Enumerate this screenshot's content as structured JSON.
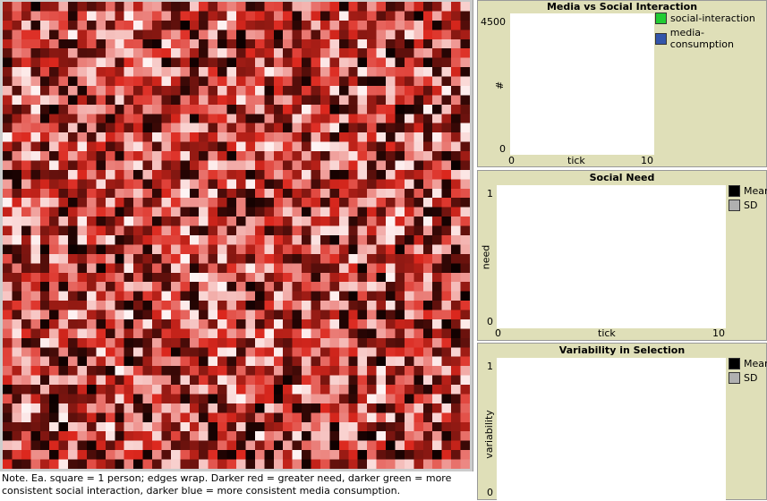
{
  "world": {
    "note": "Note. Ea. square = 1 person; edges wrap. Darker red = greater need, darker green = more consistent social interaction, darker blue = more consistent media consumption."
  },
  "plots": [
    {
      "title": "Media vs Social Interaction",
      "ylabel": "#",
      "xlabel": "tick",
      "ymax": "4500",
      "ymin": "0",
      "xmin": "0",
      "xmax": "10",
      "legend": [
        {
          "label": "social-interaction",
          "color": "#22cc33"
        },
        {
          "label": "media-consumption",
          "color": "#3355aa"
        }
      ]
    },
    {
      "title": "Social Need",
      "ylabel": "need",
      "xlabel": "tick",
      "ymax": "1",
      "ymin": "0",
      "xmin": "0",
      "xmax": "10",
      "legend": [
        {
          "label": "Mean",
          "color": "#000000"
        },
        {
          "label": "SD",
          "color": "#b0b0b0"
        }
      ]
    },
    {
      "title": "Variability in Selection",
      "ylabel": "variability",
      "ymax": "1",
      "ymin": "0",
      "legend": [
        {
          "label": "Mean",
          "color": "#000000"
        },
        {
          "label": "SD",
          "color": "#b0b0b0"
        }
      ]
    }
  ]
}
